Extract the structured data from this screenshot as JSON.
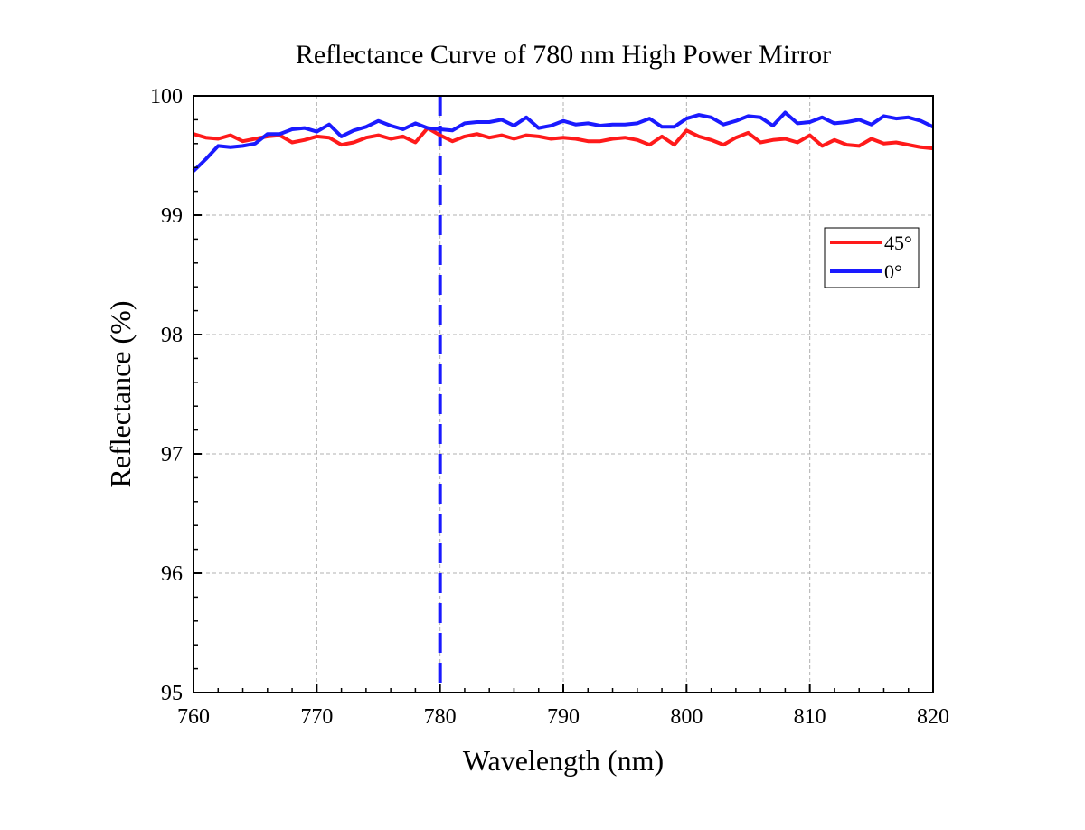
{
  "chart_data": {
    "type": "line",
    "title": "Reflectance Curve of 780 nm High Power Mirror",
    "xlabel": "Wavelength (nm)",
    "ylabel": "Reflectance (%)",
    "xlim": [
      760,
      820
    ],
    "ylim": [
      95,
      100
    ],
    "xticks": [
      760,
      770,
      780,
      790,
      800,
      810,
      820
    ],
    "yticks": [
      95,
      96,
      97,
      98,
      99,
      100
    ],
    "grid": true,
    "legend_position": "right",
    "reference_line": {
      "x": 780,
      "color": "#1a1aff",
      "style": "dashed"
    },
    "x": [
      760,
      761,
      762,
      763,
      764,
      765,
      766,
      767,
      768,
      769,
      770,
      771,
      772,
      773,
      774,
      775,
      776,
      777,
      778,
      779,
      780,
      781,
      782,
      783,
      784,
      785,
      786,
      787,
      788,
      789,
      790,
      791,
      792,
      793,
      794,
      795,
      796,
      797,
      798,
      799,
      800,
      801,
      802,
      803,
      804,
      805,
      806,
      807,
      808,
      809,
      810,
      811,
      812,
      813,
      814,
      815,
      816,
      817,
      818,
      819,
      820
    ],
    "series": [
      {
        "name": "45°",
        "color": "#ff1a1a",
        "values": [
          99.68,
          99.65,
          99.64,
          99.67,
          99.62,
          99.64,
          99.66,
          99.67,
          99.61,
          99.63,
          99.66,
          99.65,
          99.59,
          99.61,
          99.65,
          99.67,
          99.64,
          99.66,
          99.61,
          99.73,
          99.67,
          99.62,
          99.66,
          99.68,
          99.65,
          99.67,
          99.64,
          99.67,
          99.66,
          99.64,
          99.65,
          99.64,
          99.62,
          99.62,
          99.64,
          99.65,
          99.63,
          99.59,
          99.66,
          99.59,
          99.71,
          99.66,
          99.63,
          99.59,
          99.65,
          99.69,
          99.61,
          99.63,
          99.64,
          99.61,
          99.67,
          99.58,
          99.63,
          99.59,
          99.58,
          99.64,
          99.6,
          99.61,
          99.59,
          99.57,
          99.56
        ]
      },
      {
        "name": "0°",
        "color": "#1a1aff",
        "values": [
          99.37,
          99.47,
          99.58,
          99.57,
          99.58,
          99.6,
          99.68,
          99.68,
          99.72,
          99.73,
          99.7,
          99.76,
          99.66,
          99.71,
          99.74,
          99.79,
          99.75,
          99.72,
          99.77,
          99.73,
          99.72,
          99.71,
          99.77,
          99.78,
          99.78,
          99.8,
          99.75,
          99.82,
          99.73,
          99.75,
          99.79,
          99.76,
          99.77,
          99.75,
          99.76,
          99.76,
          99.77,
          99.81,
          99.74,
          99.74,
          99.81,
          99.84,
          99.82,
          99.76,
          99.79,
          99.83,
          99.82,
          99.75,
          99.86,
          99.77,
          99.78,
          99.82,
          99.77,
          99.78,
          99.8,
          99.76,
          99.83,
          99.81,
          99.82,
          99.79,
          99.74
        ]
      }
    ]
  }
}
